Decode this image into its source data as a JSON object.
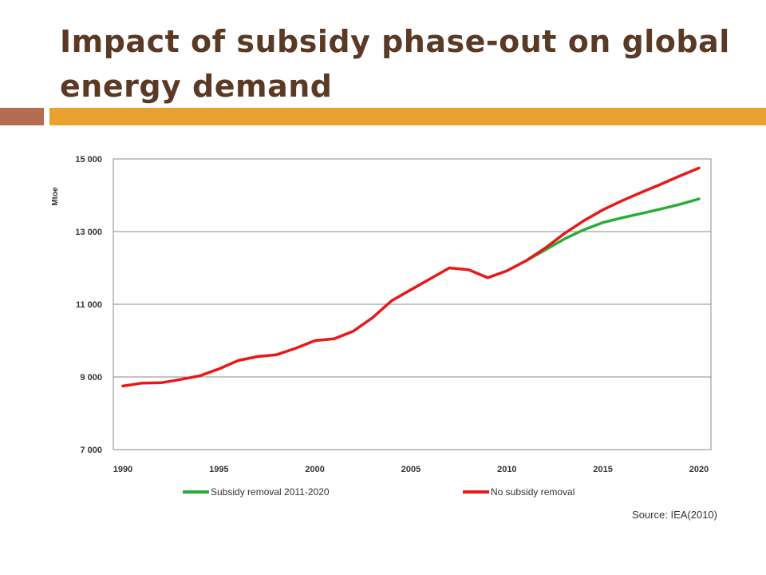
{
  "slide": {
    "title": "Impact of subsidy phase-out on global energy demand",
    "source": "Source: IEA(2010)",
    "colors": {
      "title": "#5a3a25",
      "bar_left": "#b56d52",
      "bar_right": "#eba12f"
    }
  },
  "chart_data": {
    "type": "line",
    "title": "",
    "xlabel": "",
    "ylabel": "Mtoe",
    "xlim": [
      1990,
      2020
    ],
    "ylim": [
      7000,
      15000
    ],
    "xticks": [
      "1990",
      "1995",
      "2000",
      "2005",
      "2010",
      "2015",
      "2020"
    ],
    "yticks": [
      "7 000",
      "9 000",
      "11 000",
      "13 000",
      "15 000"
    ],
    "grid": true,
    "legend_position": "bottom",
    "series": [
      {
        "name": "Subsidy removal 2011-2020",
        "color": "#2aac3a",
        "points": [
          [
            2011,
            12200
          ],
          [
            2012,
            12500
          ],
          [
            2013,
            12800
          ],
          [
            2014,
            13050
          ],
          [
            2015,
            13250
          ],
          [
            2016,
            13380
          ],
          [
            2017,
            13500
          ],
          [
            2018,
            13620
          ],
          [
            2019,
            13750
          ],
          [
            2020,
            13900
          ]
        ]
      },
      {
        "name": "No subsidy removal",
        "color": "#e81818",
        "points": [
          [
            1990,
            8750
          ],
          [
            1991,
            8830
          ],
          [
            1992,
            8840
          ],
          [
            1993,
            8930
          ],
          [
            1994,
            9030
          ],
          [
            1995,
            9220
          ],
          [
            1996,
            9450
          ],
          [
            1997,
            9560
          ],
          [
            1998,
            9610
          ],
          [
            1999,
            9790
          ],
          [
            2000,
            10000
          ],
          [
            2001,
            10050
          ],
          [
            2002,
            10260
          ],
          [
            2003,
            10630
          ],
          [
            2004,
            11100
          ],
          [
            2005,
            11400
          ],
          [
            2006,
            11700
          ],
          [
            2007,
            12000
          ],
          [
            2008,
            11950
          ],
          [
            2009,
            11730
          ],
          [
            2010,
            11920
          ],
          [
            2011,
            12200
          ],
          [
            2012,
            12550
          ],
          [
            2013,
            12950
          ],
          [
            2014,
            13300
          ],
          [
            2015,
            13600
          ],
          [
            2016,
            13850
          ],
          [
            2017,
            14080
          ],
          [
            2018,
            14300
          ],
          [
            2019,
            14530
          ],
          [
            2020,
            14750
          ]
        ]
      }
    ]
  }
}
